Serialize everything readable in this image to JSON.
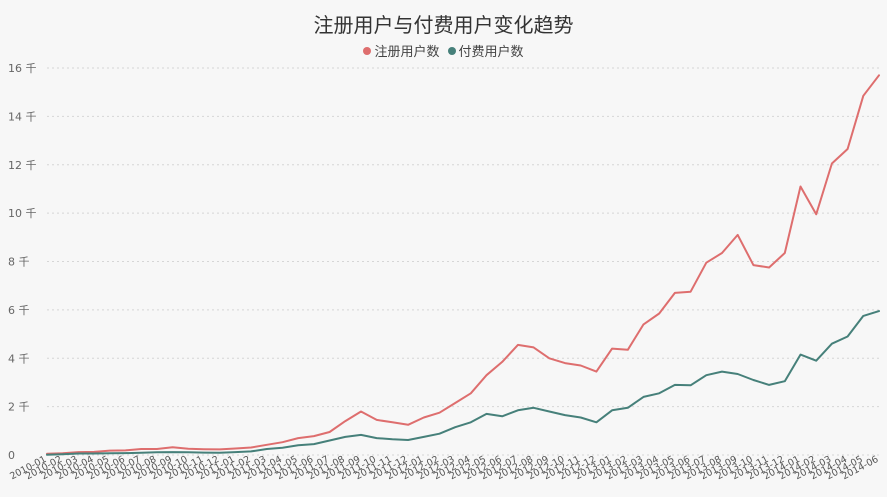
{
  "chart_data": {
    "type": "line",
    "title": "注册用户与付费用户变化趋势",
    "xlabel": "",
    "ylabel": "",
    "grid": true,
    "legend_position": "top-center",
    "ylim": [
      0,
      16000
    ],
    "y_ticks": [
      0,
      2000,
      4000,
      6000,
      8000,
      10000,
      12000,
      14000,
      16000
    ],
    "y_tick_labels": [
      "0",
      "2 千",
      "4 千",
      "6 千",
      "8 千",
      "10 千",
      "12 千",
      "14 千",
      "16 千"
    ],
    "x": [
      "2010-01",
      "2010-02",
      "2010-03",
      "2010-04",
      "2010-05",
      "2010-06",
      "2010-07",
      "2010-08",
      "2010-09",
      "2010-10",
      "2010-11",
      "2010-12",
      "2011-01",
      "2011-02",
      "2011-03",
      "2011-04",
      "2011-05",
      "2011-06",
      "2011-07",
      "2011-08",
      "2011-09",
      "2011-10",
      "2011-11",
      "2011-12",
      "2012-01",
      "2012-02",
      "2012-03",
      "2012-04",
      "2012-05",
      "2012-06",
      "2012-07",
      "2012-08",
      "2012-09",
      "2012-10",
      "2012-11",
      "2012-12",
      "2013-01",
      "2013-02",
      "2013-03",
      "2013-04",
      "2013-05",
      "2013-06",
      "2013-07",
      "2013-08",
      "2013-09",
      "2013-10",
      "2013-11",
      "2013-12",
      "2014-01",
      "2014-02",
      "2014-03",
      "2014-04",
      "2014-05",
      "2014-06"
    ],
    "series": [
      {
        "name": "注册用户数",
        "color": "#de6e6e",
        "values": [
          50,
          70,
          120,
          130,
          180,
          190,
          250,
          250,
          320,
          260,
          240,
          230,
          270,
          310,
          420,
          530,
          700,
          780,
          950,
          1400,
          1800,
          1450,
          1350,
          1250,
          1550,
          1750,
          2150,
          2550,
          3300,
          3850,
          4550,
          4450,
          4000,
          3800,
          3700,
          3450,
          4400,
          4350,
          5400,
          5850,
          6700,
          6750,
          7950,
          8350,
          9100,
          7850,
          7750,
          8350,
          11100,
          9950,
          12050,
          12650,
          14850,
          15700
        ]
      },
      {
        "name": "付费用户数",
        "color": "#46807a",
        "values": [
          10,
          30,
          60,
          60,
          70,
          80,
          90,
          110,
          120,
          110,
          100,
          90,
          120,
          150,
          250,
          300,
          400,
          450,
          600,
          750,
          830,
          700,
          650,
          620,
          750,
          880,
          1150,
          1350,
          1700,
          1600,
          1850,
          1950,
          1800,
          1650,
          1550,
          1350,
          1850,
          1950,
          2400,
          2550,
          2900,
          2880,
          3300,
          3450,
          3350,
          3100,
          2900,
          3050,
          4150,
          3900,
          4600,
          4900,
          5750,
          5950
        ]
      }
    ]
  }
}
